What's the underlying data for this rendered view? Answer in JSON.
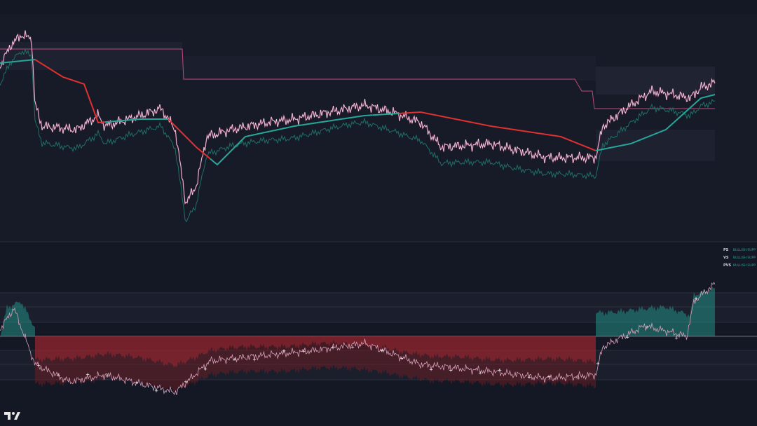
{
  "legend": [
    {
      "label": "PS",
      "status": "BULLISH SUPP"
    },
    {
      "label": "VS",
      "status": "BULLISH SUPP"
    },
    {
      "label": "PVS",
      "status": "BULLISH SUPP"
    }
  ]
}
